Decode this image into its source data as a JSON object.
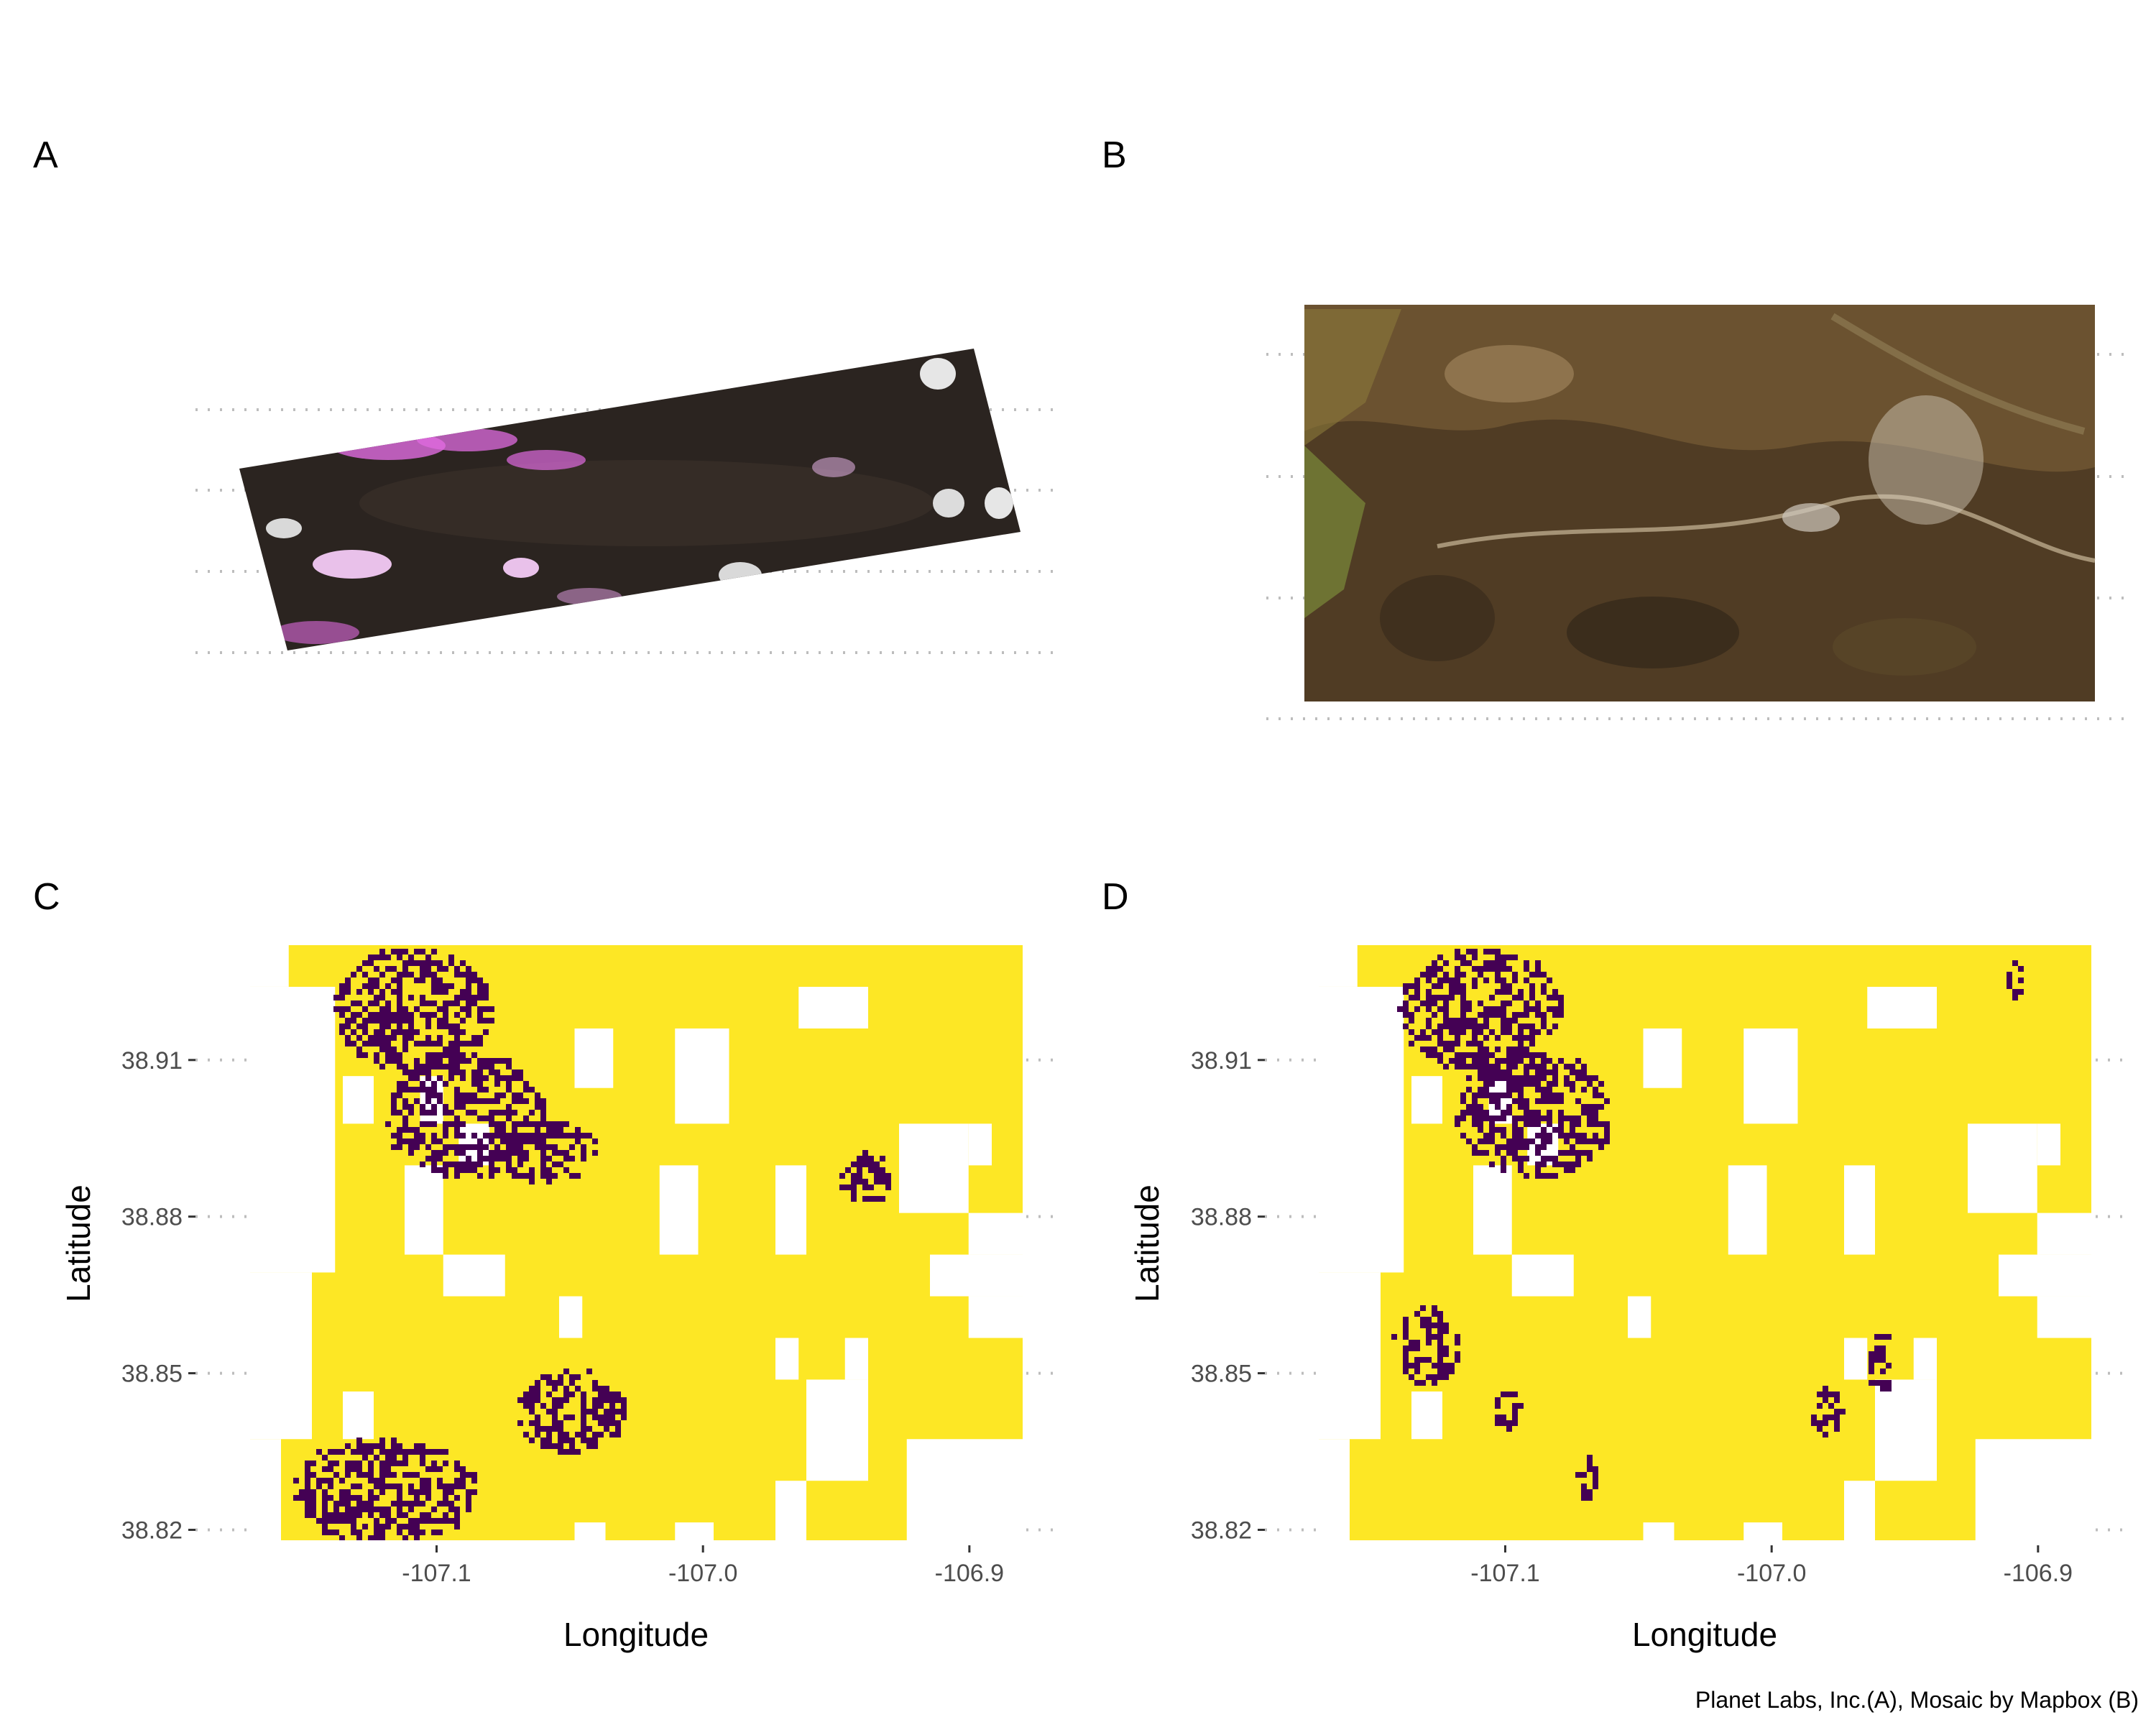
{
  "panels": {
    "a": {
      "label": "A"
    },
    "b": {
      "label": "B"
    },
    "c": {
      "label": "C"
    },
    "d": {
      "label": "D"
    }
  },
  "caption": "Planet Labs, Inc.(A), Mosaic by Mapbox (B)",
  "colors": {
    "fill_high": "#FDE725",
    "fill_low": "#440154",
    "gridline": "#bdbdbd",
    "imagery_dark": "#2b2420",
    "imagery_snow": "#e06be0",
    "imagery_terrain": "#6b5230"
  },
  "chart_data": [
    {
      "panel": "C",
      "type": "heatmap",
      "title": "",
      "xlabel": "Longitude",
      "ylabel": "Latitude",
      "xticks": [
        {
          "value": -107.1,
          "label": "-107.1"
        },
        {
          "value": -107.0,
          "label": "-107.0"
        },
        {
          "value": -106.9,
          "label": "-106.9"
        }
      ],
      "yticks": [
        {
          "value": 38.91,
          "label": "38.91"
        },
        {
          "value": 38.88,
          "label": "38.88"
        },
        {
          "value": 38.85,
          "label": "38.85"
        },
        {
          "value": 38.82,
          "label": "38.82"
        }
      ],
      "xlim": [
        -107.17,
        -106.88
      ],
      "ylim": [
        38.818,
        38.932
      ],
      "grid": "dotted horizontal",
      "legend": "none",
      "low_value_clusters": [
        {
          "lon": -107.11,
          "lat": 38.92,
          "rx": 0.03,
          "ry": 0.012
        },
        {
          "lon": -107.09,
          "lat": 38.9,
          "rx": 0.03,
          "ry": 0.012
        },
        {
          "lon": -107.06,
          "lat": 38.893,
          "rx": 0.02,
          "ry": 0.006
        },
        {
          "lon": -107.12,
          "lat": 38.828,
          "rx": 0.035,
          "ry": 0.01
        },
        {
          "lon": -107.05,
          "lat": 38.843,
          "rx": 0.02,
          "ry": 0.008
        },
        {
          "lon": -106.94,
          "lat": 38.888,
          "rx": 0.01,
          "ry": 0.005
        }
      ]
    },
    {
      "panel": "D",
      "type": "heatmap",
      "title": "",
      "xlabel": "Longitude",
      "ylabel": "Latitude",
      "xticks": [
        {
          "value": -107.1,
          "label": "-107.1"
        },
        {
          "value": -107.0,
          "label": "-107.0"
        },
        {
          "value": -106.9,
          "label": "-106.9"
        }
      ],
      "yticks": [
        {
          "value": 38.91,
          "label": "38.91"
        },
        {
          "value": 38.88,
          "label": "38.88"
        },
        {
          "value": 38.85,
          "label": "38.85"
        },
        {
          "value": 38.82,
          "label": "38.82"
        }
      ],
      "xlim": [
        -107.17,
        -106.88
      ],
      "ylim": [
        38.818,
        38.932
      ],
      "grid": "dotted horizontal",
      "legend": "none",
      "low_value_clusters": [
        {
          "lon": -107.11,
          "lat": 38.92,
          "rx": 0.03,
          "ry": 0.012
        },
        {
          "lon": -107.09,
          "lat": 38.9,
          "rx": 0.03,
          "ry": 0.012
        },
        {
          "lon": -107.13,
          "lat": 38.856,
          "rx": 0.012,
          "ry": 0.008
        },
        {
          "lon": -107.1,
          "lat": 38.843,
          "rx": 0.006,
          "ry": 0.004
        },
        {
          "lon": -107.07,
          "lat": 38.83,
          "rx": 0.004,
          "ry": 0.004
        },
        {
          "lon": -106.96,
          "lat": 38.852,
          "rx": 0.005,
          "ry": 0.006
        },
        {
          "lon": -106.98,
          "lat": 38.843,
          "rx": 0.005,
          "ry": 0.005
        },
        {
          "lon": -106.91,
          "lat": 38.926,
          "rx": 0.003,
          "ry": 0.004
        }
      ]
    }
  ]
}
